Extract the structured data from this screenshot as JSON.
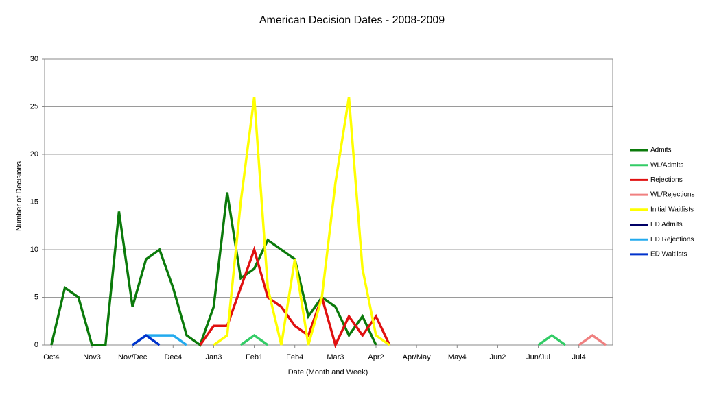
{
  "chart_data": {
    "type": "line",
    "title": "American Decision Dates - 2008-2009",
    "x_label": "Date (Month and Week)",
    "y_label": "Number of Decisions",
    "categories": [
      "Oct4",
      null,
      null,
      "Nov3",
      null,
      null,
      "Nov/Dec",
      null,
      null,
      "Dec4",
      null,
      null,
      "Jan3",
      null,
      null,
      "Feb1",
      null,
      null,
      "Feb4",
      null,
      null,
      "Mar3",
      null,
      null,
      "Apr2",
      null,
      null,
      "Apr/May",
      null,
      null,
      "May4",
      null,
      null,
      "Jun2",
      null,
      null,
      "Jun/Jul",
      null,
      null,
      "Jul4",
      null,
      null
    ],
    "ylim": [
      0,
      30
    ],
    "yticks": [
      0,
      5,
      10,
      15,
      20,
      25,
      30
    ],
    "grid": true,
    "legend": "right",
    "series": [
      {
        "name": "Admits",
        "color": "#0b7a0b",
        "values": [
          0,
          6,
          5,
          0,
          0,
          14,
          4,
          9,
          10,
          6,
          1,
          0,
          4,
          16,
          7,
          8,
          11,
          10,
          9,
          3,
          5,
          4,
          1,
          3,
          0,
          null,
          null,
          null,
          null,
          null,
          null,
          null,
          null,
          null,
          null,
          null,
          null,
          null,
          null,
          null,
          null,
          null
        ]
      },
      {
        "name": "WL/Admits",
        "color": "#33cc66",
        "values": [
          null,
          null,
          null,
          null,
          null,
          null,
          null,
          null,
          null,
          null,
          null,
          null,
          null,
          null,
          0,
          1,
          0,
          null,
          null,
          null,
          null,
          null,
          null,
          null,
          null,
          null,
          null,
          null,
          null,
          null,
          null,
          null,
          null,
          null,
          null,
          null,
          0,
          1,
          0,
          null,
          null,
          null
        ]
      },
      {
        "name": "Rejections",
        "color": "#e01010",
        "values": [
          null,
          null,
          null,
          null,
          null,
          null,
          null,
          null,
          null,
          null,
          null,
          0,
          2,
          2,
          6,
          10,
          5,
          4,
          2,
          1,
          5,
          0,
          3,
          1,
          3,
          0,
          null,
          null,
          null,
          null,
          null,
          null,
          null,
          null,
          null,
          null,
          null,
          null,
          null,
          null,
          null,
          null
        ]
      },
      {
        "name": "WL/Rejections",
        "color": "#f08080",
        "values": [
          null,
          null,
          null,
          null,
          null,
          null,
          null,
          null,
          null,
          null,
          null,
          null,
          null,
          null,
          null,
          null,
          null,
          null,
          null,
          null,
          null,
          null,
          null,
          null,
          null,
          null,
          null,
          null,
          null,
          null,
          null,
          null,
          null,
          null,
          null,
          null,
          null,
          null,
          null,
          0,
          1,
          0
        ]
      },
      {
        "name": "Initial Waitlists",
        "color": "#ffff00",
        "values": [
          null,
          null,
          null,
          null,
          null,
          null,
          null,
          null,
          null,
          null,
          null,
          null,
          0,
          1,
          15,
          26,
          6,
          0,
          9,
          0,
          5,
          17,
          26,
          8,
          1,
          0,
          null,
          null,
          null,
          null,
          null,
          null,
          null,
          null,
          null,
          null,
          null,
          null,
          null,
          null,
          null,
          null
        ]
      },
      {
        "name": "ED Admits",
        "color": "#000066",
        "values": [
          null,
          null,
          null,
          null,
          null,
          null,
          null,
          null,
          null,
          null,
          null,
          null,
          null,
          null,
          null,
          null,
          null,
          null,
          null,
          null,
          null,
          null,
          null,
          null,
          null,
          null,
          null,
          null,
          null,
          null,
          null,
          null,
          null,
          null,
          null,
          null,
          null,
          null,
          null,
          null,
          null,
          null
        ]
      },
      {
        "name": "ED Rejections",
        "color": "#22aaee",
        "values": [
          null,
          null,
          null,
          null,
          null,
          null,
          0,
          1,
          1,
          1,
          0,
          null,
          null,
          null,
          null,
          null,
          null,
          null,
          null,
          null,
          null,
          null,
          null,
          null,
          null,
          null,
          null,
          null,
          null,
          null,
          null,
          null,
          null,
          null,
          null,
          null,
          null,
          null,
          null,
          null,
          null,
          null
        ]
      },
      {
        "name": "ED Waitlists",
        "color": "#0033cc",
        "values": [
          null,
          null,
          null,
          null,
          null,
          null,
          0,
          1,
          0,
          null,
          null,
          null,
          null,
          null,
          null,
          null,
          null,
          null,
          null,
          null,
          null,
          null,
          null,
          null,
          null,
          null,
          null,
          null,
          null,
          null,
          null,
          null,
          null,
          null,
          null,
          null,
          null,
          null,
          null,
          null,
          null,
          null
        ]
      }
    ]
  }
}
